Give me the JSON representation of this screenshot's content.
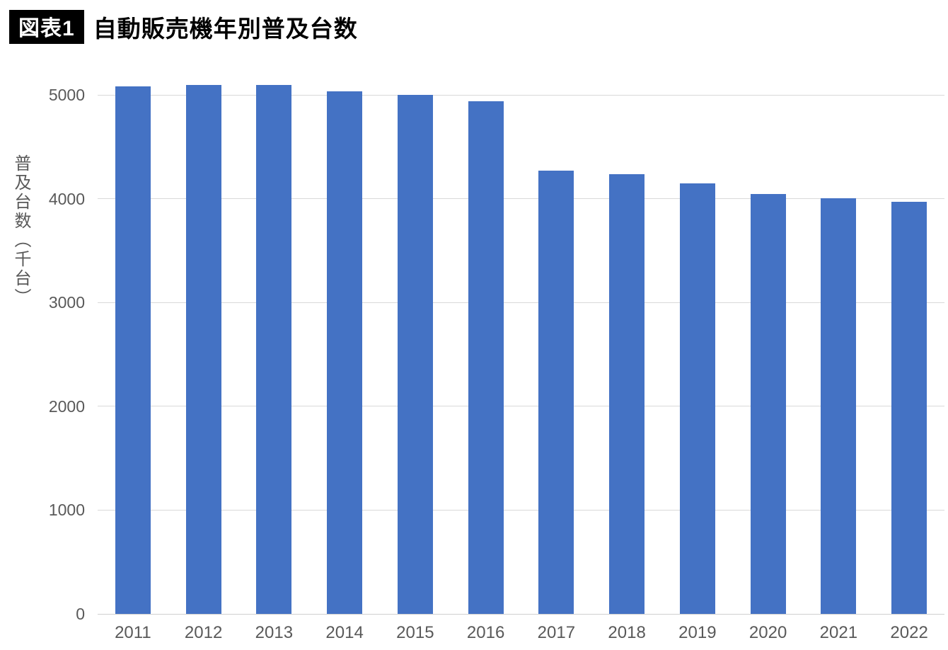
{
  "header": {
    "badge": "図表1",
    "title": "自動販売機年別普及台数"
  },
  "chart_data": {
    "type": "bar",
    "title": "自動販売機年別普及台数",
    "categories": [
      "2011",
      "2012",
      "2013",
      "2014",
      "2015",
      "2016",
      "2017",
      "2018",
      "2019",
      "2020",
      "2021",
      "2022"
    ],
    "values": [
      5085,
      5093,
      5094,
      5036,
      5002,
      4941,
      4271,
      4235,
      4149,
      4046,
      4004,
      3970
    ],
    "xlabel": "",
    "ylabel": "普及台数（千台）",
    "ylim": [
      0,
      5000
    ],
    "ytick_step": 1000,
    "yticks": [
      0,
      1000,
      2000,
      3000,
      4000,
      5000
    ],
    "grid": true,
    "legend": false,
    "bar_color": "#4472C4",
    "gridline_color": "#D9D9D9",
    "axis_line_color": "#CFCFCF",
    "tick_label_color": "#595959",
    "axis_title_color": "#595959"
  }
}
